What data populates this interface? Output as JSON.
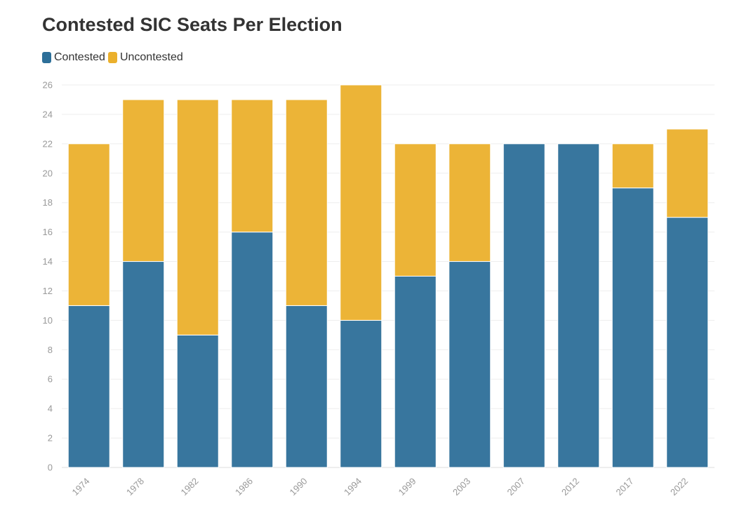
{
  "chart_data": {
    "type": "bar",
    "stacked": true,
    "title": "Contested SIC Seats Per Election",
    "categories": [
      "1974",
      "1978",
      "1982",
      "1986",
      "1990",
      "1994",
      "1999",
      "2003",
      "2007",
      "2012",
      "2017",
      "2022"
    ],
    "series": [
      {
        "name": "Contested",
        "color": "#2d6f99",
        "values": [
          11,
          14,
          9,
          16,
          11,
          10,
          13,
          14,
          22,
          22,
          19,
          17
        ]
      },
      {
        "name": "Uncontested",
        "color": "#ebb02c",
        "values": [
          11,
          11,
          16,
          9,
          14,
          16,
          9,
          8,
          0,
          0,
          3,
          6
        ]
      }
    ],
    "ylim": [
      0,
      26
    ],
    "yticks": [
      0,
      2,
      4,
      6,
      8,
      10,
      12,
      14,
      16,
      18,
      20,
      22,
      24,
      26
    ],
    "grid": true,
    "legend_position": "top-left"
  }
}
